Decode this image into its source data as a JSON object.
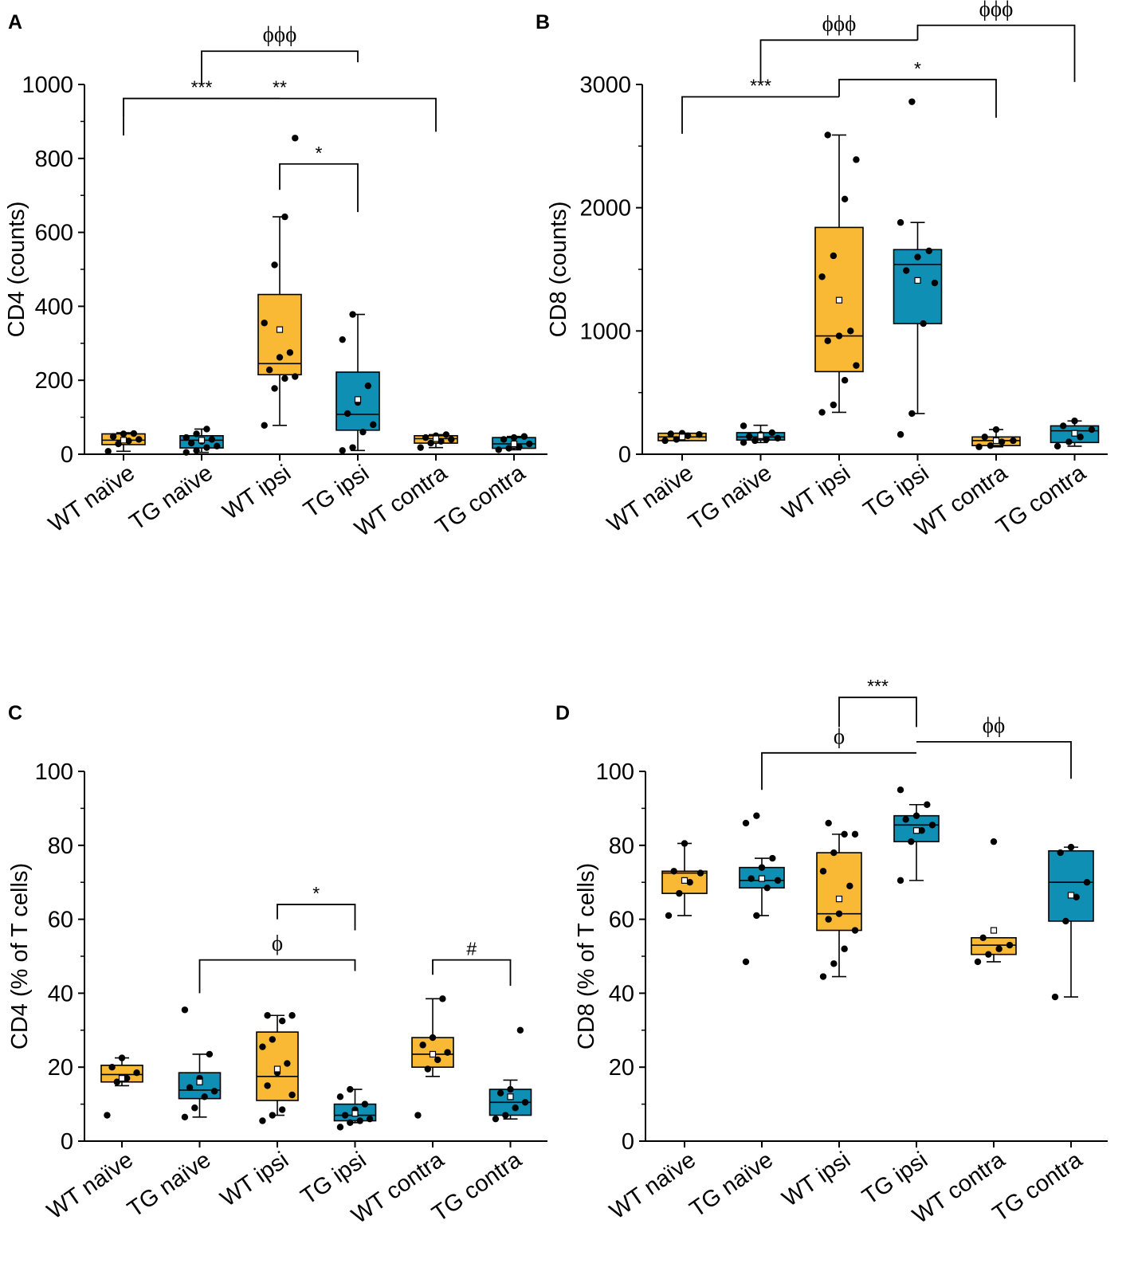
{
  "colors": {
    "wt": "#F9B935",
    "tg": "#0F8FB4",
    "ink": "#000000"
  },
  "chart_data": [
    {
      "type": "box",
      "panel": "A",
      "title": "",
      "xlabel": "",
      "ylabel": "CD4 (counts)",
      "ylim": [
        0,
        1000
      ],
      "yticks": [
        0,
        200,
        400,
        600,
        800,
        1000
      ],
      "categories": [
        "WT naïve",
        "TG naïve",
        "WT ipsi",
        "TG ipsi",
        "WT contra",
        "TG contra"
      ],
      "groups": [
        {
          "name": "WT naïve",
          "color": "wt",
          "min": 8,
          "q1": 26,
          "median": 38,
          "q3": 55,
          "max": 58,
          "mean": 38,
          "points": [
            8,
            28,
            36,
            40,
            48,
            55,
            56
          ]
        },
        {
          "name": "TG naïve",
          "color": "tg",
          "min": 5,
          "q1": 17,
          "median": 38,
          "q3": 50,
          "max": 68,
          "mean": 38,
          "points": [
            5,
            10,
            18,
            22,
            30,
            35,
            40,
            45,
            55,
            68
          ]
        },
        {
          "name": "WT ipsi",
          "color": "wt",
          "min": 78,
          "q1": 215,
          "median": 245,
          "q3": 432,
          "max": 642,
          "mean": 337,
          "points": [
            78,
            178,
            205,
            210,
            228,
            262,
            275,
            355,
            512,
            642,
            855
          ]
        },
        {
          "name": "TG ipsi",
          "color": "tg",
          "min": 10,
          "q1": 65,
          "median": 108,
          "q3": 222,
          "max": 378,
          "mean": 148,
          "points": [
            10,
            18,
            60,
            80,
            110,
            140,
            185,
            310,
            378
          ]
        },
        {
          "name": "WT contra",
          "color": "wt",
          "min": 18,
          "q1": 30,
          "median": 42,
          "q3": 50,
          "max": 53,
          "mean": 42,
          "points": [
            18,
            30,
            35,
            40,
            45,
            50,
            53
          ]
        },
        {
          "name": "TG contra",
          "color": "tg",
          "min": 12,
          "q1": 16,
          "median": 28,
          "q3": 45,
          "max": 48,
          "mean": 28,
          "points": [
            12,
            16,
            20,
            28,
            40,
            45,
            48
          ]
        }
      ],
      "comparisons": [
        {
          "from": 0,
          "to": 4,
          "mid": 2,
          "y": 962,
          "drop": 48,
          "label": "**",
          "style": "pair",
          "drop_left": 48,
          "drop_right": 90,
          "anchor_x": 2
        },
        {
          "from": 0,
          "to": 2,
          "y": 962,
          "label": "***",
          "style": "bracket",
          "drop_left": 100,
          "drop_right": 0
        },
        {
          "from": 2,
          "to": 3,
          "y": 785,
          "label": "*",
          "style": "bracket",
          "drop_left": 70,
          "drop_right": 130
        },
        {
          "from": 1,
          "to": 3,
          "y": 1090,
          "label": "ϕϕϕ",
          "style": "bracket",
          "drop_left": 90,
          "drop_right": 30
        }
      ],
      "significance": [
        "***",
        "**",
        "*",
        "ϕϕϕ"
      ]
    },
    {
      "type": "box",
      "panel": "B",
      "title": "",
      "xlabel": "",
      "ylabel": "CD8 (counts)",
      "ylim": [
        0,
        3000
      ],
      "yticks": [
        0,
        1000,
        2000,
        3000
      ],
      "categories": [
        "WT naïve",
        "TG naïve",
        "WT ipsi",
        "TG ipsi",
        "WT contra",
        "TG contra"
      ],
      "groups": [
        {
          "name": "WT naïve",
          "color": "wt",
          "min": 110,
          "q1": 110,
          "median": 140,
          "q3": 170,
          "max": 170,
          "mean": 140,
          "points": [
            110,
            120,
            150,
            160,
            165,
            170
          ]
        },
        {
          "name": "TG naïve",
          "color": "tg",
          "min": 95,
          "q1": 115,
          "median": 140,
          "q3": 175,
          "max": 235,
          "mean": 150,
          "points": [
            95,
            110,
            120,
            130,
            145,
            160,
            175,
            230
          ]
        },
        {
          "name": "WT ipsi",
          "color": "wt",
          "min": 340,
          "q1": 670,
          "median": 960,
          "q3": 1840,
          "max": 2590,
          "mean": 1250,
          "points": [
            340,
            400,
            600,
            720,
            920,
            960,
            1000,
            1440,
            1610,
            2070,
            2390,
            2590
          ]
        },
        {
          "name": "TG ipsi",
          "color": "tg",
          "min": 330,
          "q1": 1060,
          "median": 1540,
          "q3": 1660,
          "max": 1880,
          "mean": 1410,
          "points": [
            160,
            330,
            1060,
            1390,
            1490,
            1600,
            1650,
            1880,
            2860
          ]
        },
        {
          "name": "WT contra",
          "color": "wt",
          "min": 60,
          "q1": 70,
          "median": 110,
          "q3": 140,
          "max": 200,
          "mean": 110,
          "points": [
            60,
            70,
            100,
            110,
            140,
            200
          ]
        },
        {
          "name": "TG contra",
          "color": "tg",
          "min": 65,
          "q1": 95,
          "median": 190,
          "q3": 230,
          "max": 270,
          "mean": 170,
          "points": [
            65,
            100,
            140,
            200,
            230,
            270
          ]
        }
      ],
      "comparisons": [
        {
          "from": 0,
          "to": 2,
          "y": 2900,
          "label": "***",
          "style": "bracket",
          "drop_left": 300,
          "drop_right": 0
        },
        {
          "from": 2,
          "to": 4,
          "y": 3040,
          "label": "*",
          "style": "bracket",
          "drop_left": 140,
          "drop_right": 310
        },
        {
          "from": 1,
          "to": 3,
          "y": 3360,
          "label": "ϕϕϕ",
          "style": "bracket",
          "drop_left": 340,
          "drop_right": 0
        },
        {
          "from": 3,
          "to": 5,
          "y": 3480,
          "label": "ϕϕϕ",
          "style": "bracket",
          "drop_left": 120,
          "drop_right": 460
        }
      ],
      "significance": [
        "***",
        "*",
        "ϕϕϕ",
        "ϕϕϕ"
      ]
    },
    {
      "type": "box",
      "panel": "C",
      "title": "",
      "xlabel": "",
      "ylabel": "CD4 (% of T cells)",
      "ylim": [
        0,
        100
      ],
      "yticks": [
        0,
        20,
        40,
        60,
        80,
        100
      ],
      "categories": [
        "WT naïve",
        "TG naïve",
        "WT ipsi",
        "TG ipsi",
        "WT contra",
        "TG contra"
      ],
      "groups": [
        {
          "name": "WT naïve",
          "color": "wt",
          "min": 15,
          "q1": 16,
          "median": 18,
          "q3": 20.5,
          "max": 22.5,
          "mean": 17,
          "points": [
            7,
            16,
            17,
            18.5,
            20,
            22.5
          ]
        },
        {
          "name": "TG naïve",
          "color": "tg",
          "min": 6.5,
          "q1": 11.5,
          "median": 13.8,
          "q3": 18.5,
          "max": 23.5,
          "mean": 16,
          "points": [
            6.5,
            9,
            12,
            13.5,
            14.5,
            17,
            23.5,
            35.5
          ]
        },
        {
          "name": "WT ipsi",
          "color": "wt",
          "min": 7,
          "q1": 11,
          "median": 17.5,
          "q3": 29.5,
          "max": 34,
          "mean": 19.5,
          "points": [
            5.5,
            7,
            8.5,
            12.5,
            15,
            18.5,
            21,
            25.5,
            27.5,
            32.5,
            34,
            34
          ]
        },
        {
          "name": "TG ipsi",
          "color": "tg",
          "min": 5,
          "q1": 5.5,
          "median": 7,
          "q3": 10,
          "max": 14,
          "mean": 7.5,
          "points": [
            3.8,
            5,
            5.5,
            6,
            7,
            8.5,
            10,
            12,
            14
          ]
        },
        {
          "name": "WT contra",
          "color": "wt",
          "min": 17.5,
          "q1": 20,
          "median": 23.5,
          "q3": 28,
          "max": 38.5,
          "mean": 23.5,
          "points": [
            7,
            19.5,
            22,
            24,
            26,
            28,
            38.5
          ]
        },
        {
          "name": "TG contra",
          "color": "tg",
          "min": 6,
          "q1": 7,
          "median": 10.5,
          "q3": 14,
          "max": 16.5,
          "mean": 12,
          "points": [
            6,
            7,
            9,
            10.5,
            13,
            14,
            30
          ]
        }
      ],
      "comparisons": [
        {
          "from": 2,
          "to": 3,
          "y": 64,
          "label": "*",
          "style": "bracket",
          "drop_left": 4,
          "drop_right": 7
        },
        {
          "from": 1,
          "to": 3,
          "y": 49,
          "label": "ϕ",
          "style": "bracket",
          "drop_left": 9,
          "drop_right": 3
        },
        {
          "from": 4,
          "to": 5,
          "y": 49,
          "label": "#",
          "style": "bracket",
          "drop_left": 4,
          "drop_right": 7
        }
      ],
      "significance": [
        "*",
        "ϕ",
        "#"
      ]
    },
    {
      "type": "box",
      "panel": "D",
      "title": "",
      "xlabel": "",
      "ylabel": "CD8 (% of T cells)",
      "ylim": [
        0,
        100
      ],
      "yticks": [
        0,
        20,
        40,
        60,
        80,
        100
      ],
      "categories": [
        "WT naïve",
        "TG naïve",
        "WT ipsi",
        "TG ipsi",
        "WT contra",
        "TG contra"
      ],
      "groups": [
        {
          "name": "WT naïve",
          "color": "wt",
          "min": 61,
          "q1": 67,
          "median": 72.5,
          "q3": 73,
          "max": 80.5,
          "mean": 70.5,
          "points": [
            61,
            67,
            70,
            72.5,
            73,
            80.5
          ]
        },
        {
          "name": "TG naïve",
          "color": "tg",
          "min": 61,
          "q1": 68.5,
          "median": 70.5,
          "q3": 74,
          "max": 76.5,
          "mean": 71,
          "points": [
            48.5,
            61,
            68.5,
            70.5,
            71,
            74,
            76.5,
            86,
            88
          ]
        },
        {
          "name": "WT ipsi",
          "color": "wt",
          "min": 44.5,
          "q1": 57,
          "median": 61.5,
          "q3": 78,
          "max": 83,
          "mean": 65.5,
          "points": [
            44.5,
            48,
            52,
            57,
            60,
            61.5,
            69,
            73,
            78,
            83,
            83,
            86
          ]
        },
        {
          "name": "TG ipsi",
          "color": "tg",
          "min": 70.5,
          "q1": 81,
          "median": 85.5,
          "q3": 88,
          "max": 91,
          "mean": 84,
          "points": [
            70.5,
            81,
            84,
            85.5,
            87,
            88,
            91,
            95
          ]
        },
        {
          "name": "WT contra",
          "color": "wt",
          "min": 48.5,
          "q1": 50.5,
          "median": 53,
          "q3": 55,
          "max": 55,
          "mean": 57,
          "points": [
            48.5,
            50.5,
            52,
            53,
            55,
            81
          ]
        },
        {
          "name": "TG contra",
          "color": "tg",
          "min": 39,
          "q1": 59.5,
          "median": 70,
          "q3": 78.5,
          "max": 79.5,
          "mean": 66.5,
          "points": [
            39,
            59.5,
            66,
            70,
            78,
            79.5
          ]
        }
      ],
      "comparisons": [
        {
          "from": 2,
          "to": 3,
          "y": 120,
          "label": "***",
          "style": "bracket",
          "drop_left": 8,
          "drop_right": 8
        },
        {
          "from": 1,
          "to": 3,
          "y": 105,
          "label": "ϕ",
          "style": "bracket",
          "drop_left": 10,
          "drop_right": 0
        },
        {
          "from": 3,
          "to": 5,
          "y": 108,
          "label": "ϕϕ",
          "style": "bracket",
          "drop_left": 0,
          "drop_right": 10
        }
      ],
      "significance": [
        "***",
        "ϕ",
        "ϕϕ"
      ]
    }
  ]
}
